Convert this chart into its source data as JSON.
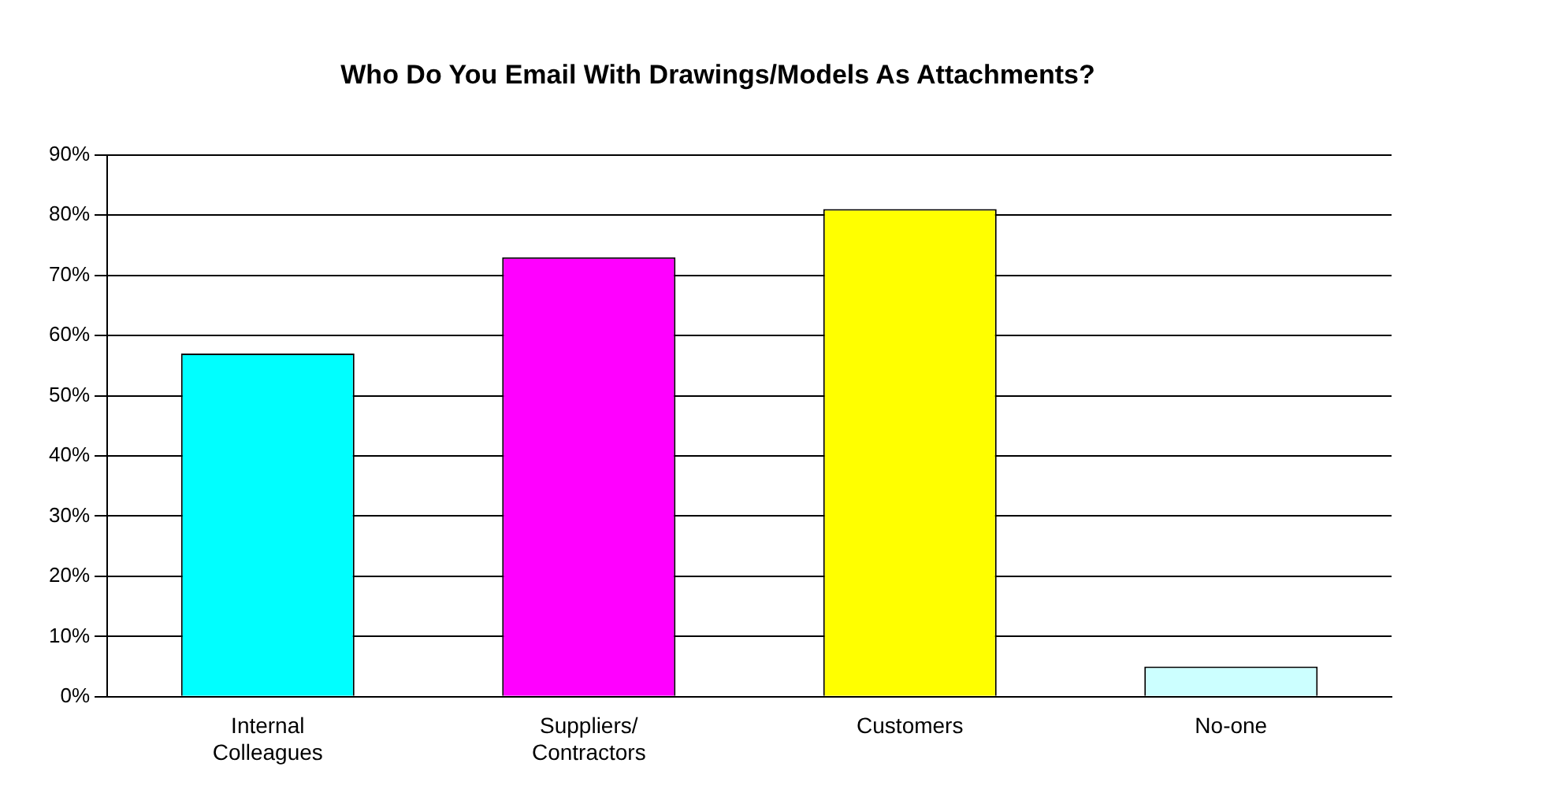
{
  "chart_data": {
    "type": "bar",
    "title": "Who Do You Email With Drawings/Models As Attachments?",
    "categories": [
      "Internal Colleagues",
      "Suppliers/ Contractors",
      "Customers",
      "No-one"
    ],
    "values": [
      57,
      73,
      81,
      5
    ],
    "colors": [
      "#00ffff",
      "#ff00ff",
      "#ffff00",
      "#ccffff"
    ],
    "ylim": [
      0,
      90
    ],
    "yticks": [
      {
        "value": 0,
        "label": "0%"
      },
      {
        "value": 10,
        "label": "10%"
      },
      {
        "value": 20,
        "label": "20%"
      },
      {
        "value": 30,
        "label": "30%"
      },
      {
        "value": 40,
        "label": "40%"
      },
      {
        "value": 50,
        "label": "50%"
      },
      {
        "value": 60,
        "label": "60%"
      },
      {
        "value": 70,
        "label": "70%"
      },
      {
        "value": 80,
        "label": "80%"
      },
      {
        "value": 90,
        "label": "90%"
      }
    ],
    "grid": "y",
    "legend": false
  }
}
